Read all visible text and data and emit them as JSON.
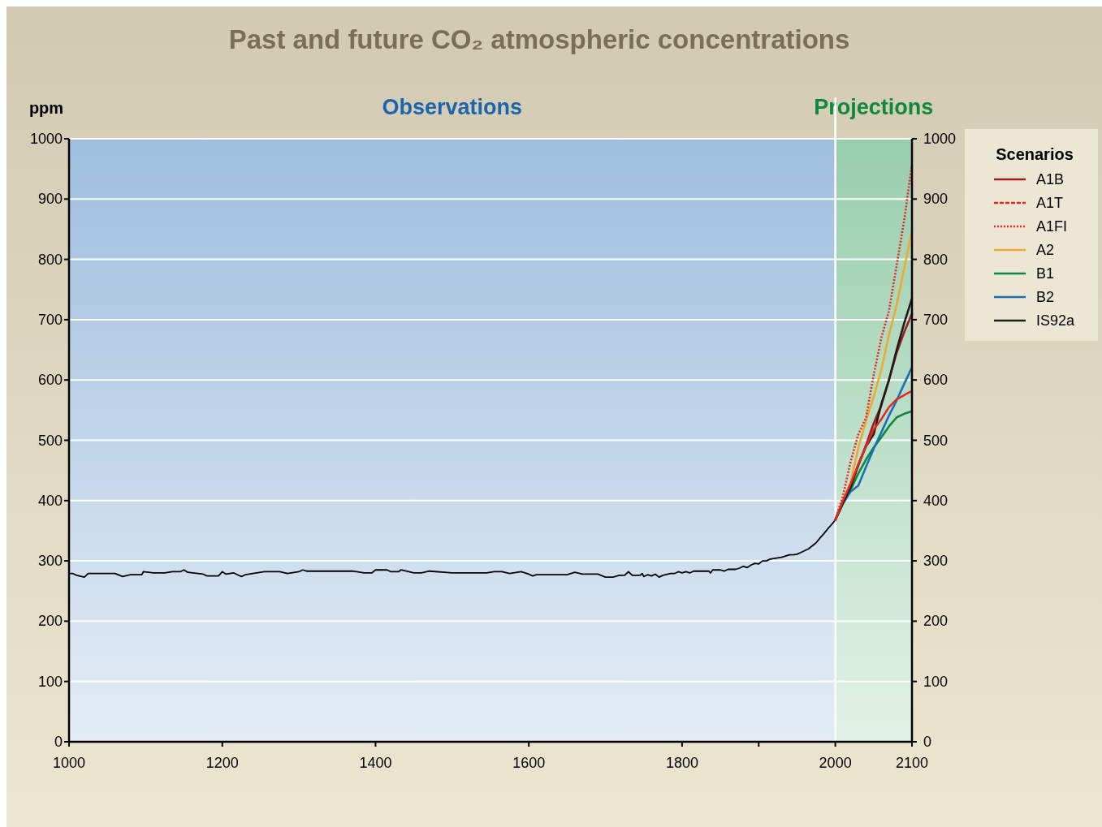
{
  "chart_data": {
    "type": "line",
    "title": "Past and future CO₂ atmospheric concentrations",
    "ylabel": "ppm",
    "legend_title": "Scenarios",
    "legend": "right",
    "grid": "y",
    "xlim": [
      1000,
      2100
    ],
    "xticks": [
      1000,
      1200,
      1400,
      1600,
      1800,
      {
        "value": 1900,
        "label": null
      },
      2000,
      2100
    ],
    "ylim": [
      0,
      1000
    ],
    "yticks": [
      0,
      100,
      200,
      300,
      400,
      500,
      600,
      700,
      800,
      900,
      1000
    ],
    "y2lim": [
      0,
      1000
    ],
    "y2ticks": [
      0,
      100,
      200,
      300,
      400,
      500,
      600,
      700,
      800,
      900,
      1000
    ],
    "bands": [
      {
        "axis": "x",
        "from": 1000,
        "to": 2000,
        "label": "Observations",
        "color": "#1a64b0"
      },
      {
        "axis": "x",
        "from": 2000,
        "to": 2100,
        "label": "Projections",
        "color": "#0a8a3a"
      }
    ],
    "ref_lines": [
      {
        "axis": "x",
        "value": 2000,
        "color": "#ffffff"
      }
    ],
    "series": [
      {
        "color": "#000000",
        "line_style": "solid",
        "x": [
          1000,
          1005,
          1010,
          1020,
          1025,
          1060,
          1070,
          1080,
          1095,
          1097,
          1110,
          1125,
          1135,
          1145,
          1150,
          1155,
          1175,
          1180,
          1195,
          1200,
          1205,
          1215,
          1220,
          1225,
          1230,
          1255,
          1275,
          1285,
          1300,
          1305,
          1310,
          1370,
          1385,
          1395,
          1400,
          1415,
          1420,
          1430,
          1433,
          1440,
          1450,
          1460,
          1470,
          1490,
          1500,
          1545,
          1555,
          1565,
          1575,
          1590,
          1600,
          1605,
          1610,
          1625,
          1650,
          1660,
          1670,
          1690,
          1700,
          1710,
          1718,
          1725,
          1730,
          1735,
          1745,
          1748,
          1750,
          1755,
          1760,
          1765,
          1770,
          1775,
          1785,
          1790,
          1795,
          1800,
          1805,
          1810,
          1815,
          1835,
          1837,
          1840,
          1850,
          1855,
          1860,
          1870,
          1875,
          1880,
          1885,
          1890,
          1895,
          1900,
          1905,
          1910,
          1915,
          1920,
          1930,
          1940,
          1945,
          1950,
          1955,
          1960,
          1965,
          1970,
          1975,
          1980,
          1985,
          1990,
          1995,
          2000
        ],
        "values": [
          279,
          279,
          276,
          273,
          279,
          279,
          274,
          277,
          277,
          282,
          280,
          280,
          282,
          282,
          285,
          281,
          278,
          275,
          275,
          282,
          278,
          280,
          277,
          274,
          277,
          282,
          282,
          279,
          282,
          285,
          283,
          283,
          280,
          280,
          285,
          285,
          282,
          282,
          285,
          283,
          280,
          280,
          283,
          281,
          280,
          280,
          282,
          282,
          279,
          282,
          278,
          275,
          277,
          277,
          277,
          281,
          278,
          278,
          273,
          273,
          276,
          276,
          282,
          276,
          276,
          279,
          274,
          277,
          275,
          278,
          273,
          276,
          279,
          279,
          282,
          280,
          282,
          280,
          283,
          283,
          280,
          285,
          285,
          283,
          286,
          286,
          288,
          291,
          289,
          293,
          296,
          295,
          300,
          300,
          303,
          304,
          306,
          310,
          310,
          311,
          314,
          317,
          320,
          325,
          330,
          338,
          345,
          353,
          360,
          368
        ]
      },
      {
        "name": "A1B",
        "color": "#a01c1c",
        "line_style": "solid",
        "x": [
          2000,
          2010,
          2020,
          2030,
          2040,
          2050,
          2060,
          2070,
          2080,
          2090,
          2100
        ],
        "values": [
          368,
          398,
          425,
          458,
          492,
          528,
          558,
          600,
          645,
          680,
          710
        ]
      },
      {
        "name": "A1T",
        "color": "#e8251f",
        "line_style": "dashed",
        "x": [
          2000,
          2010,
          2020,
          2030,
          2040,
          2050,
          2060,
          2070,
          2080,
          2090,
          2100
        ],
        "values": [
          368,
          400,
          428,
          460,
          490,
          518,
          535,
          555,
          568,
          575,
          582
        ]
      },
      {
        "name": "A1FI",
        "color": "#e8251f",
        "line_style": "dotted",
        "x": [
          2000,
          2010,
          2020,
          2030,
          2040,
          2050,
          2060,
          2070,
          2080,
          2090,
          2100
        ],
        "values": [
          368,
          408,
          465,
          510,
          537,
          608,
          670,
          715,
          790,
          866,
          958
        ]
      },
      {
        "name": "A2",
        "color": "#f0a830",
        "line_style": "solid",
        "x": [
          2000,
          2010,
          2020,
          2030,
          2040,
          2050,
          2060,
          2070,
          2080,
          2090,
          2100
        ],
        "values": [
          368,
          400,
          430,
          488,
          532,
          572,
          617,
          675,
          724,
          786,
          849
        ]
      },
      {
        "name": "B1",
        "color": "#0a8a3a",
        "line_style": "solid",
        "x": [
          2000,
          2010,
          2020,
          2030,
          2040,
          2050,
          2060,
          2070,
          2080,
          2090,
          2100
        ],
        "values": [
          368,
          396,
          418,
          445,
          468,
          488,
          505,
          523,
          538,
          544,
          548
        ]
      },
      {
        "name": "B2",
        "color": "#1a70b8",
        "line_style": "solid",
        "x": [
          2000,
          2010,
          2020,
          2030,
          2040,
          2050,
          2060,
          2070,
          2080,
          2090,
          2100
        ],
        "values": [
          368,
          395,
          415,
          425,
          456,
          486,
          513,
          541,
          566,
          594,
          621
        ]
      },
      {
        "name": "IS92a",
        "color": "#1c1c1c",
        "line_style": "solid",
        "x": [
          2000,
          2010,
          2020,
          2030,
          2040,
          2050,
          2060,
          2070,
          2080,
          2090,
          2100
        ],
        "values": [
          368,
          396,
          422,
          460,
          490,
          510,
          560,
          600,
          650,
          695,
          735
        ]
      }
    ]
  }
}
